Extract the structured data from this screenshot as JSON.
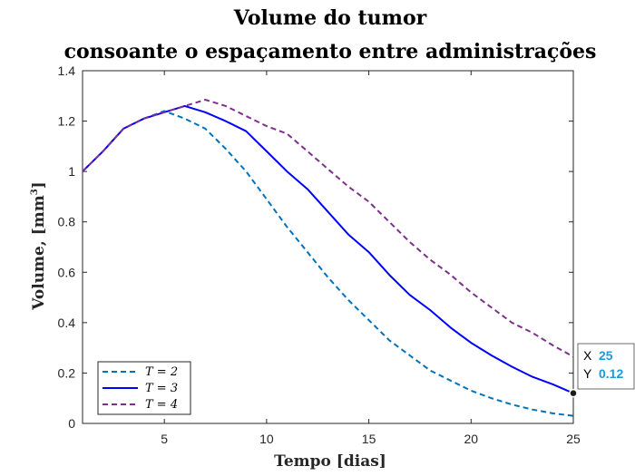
{
  "chart_data": {
    "type": "line",
    "title": [
      "Volume do tumor",
      "consoante o espaçamento entre administrações"
    ],
    "xlabel": "Tempo [dias]",
    "ylabel": "Volume, [mm",
    "ylabel_sup": "3",
    "ylabel_end": "]",
    "xlim": [
      1,
      25
    ],
    "ylim": [
      0,
      1.4
    ],
    "xticks": [
      5,
      10,
      15,
      20,
      25
    ],
    "yticks": [
      0,
      0.2,
      0.4,
      0.6,
      0.8,
      1,
      1.2,
      1.4
    ],
    "ytick_labels": [
      "0",
      "0.2",
      "0.4",
      "0.6",
      "0.8",
      "1",
      "1.2",
      "1.4"
    ],
    "grid": false,
    "legend_position": "bottom-left",
    "series": [
      {
        "name": "T = 2",
        "color": "#0072BD",
        "dash": "dashed",
        "x": [
          1,
          2,
          3,
          4,
          5,
          6,
          7,
          8,
          9,
          10,
          11,
          12,
          13,
          14,
          15,
          16,
          17,
          18,
          19,
          20,
          21,
          22,
          23,
          24,
          25
        ],
        "y": [
          1.0,
          1.08,
          1.17,
          1.21,
          1.24,
          1.21,
          1.17,
          1.09,
          1.0,
          0.89,
          0.78,
          0.68,
          0.58,
          0.49,
          0.41,
          0.33,
          0.27,
          0.21,
          0.17,
          0.13,
          0.1,
          0.075,
          0.055,
          0.04,
          0.03
        ]
      },
      {
        "name": "T = 3",
        "color": "#0000FF",
        "dash": "solid",
        "x": [
          1,
          2,
          3,
          4,
          5,
          6,
          7,
          8,
          9,
          10,
          11,
          12,
          13,
          14,
          15,
          16,
          17,
          18,
          19,
          20,
          21,
          22,
          23,
          24,
          25
        ],
        "y": [
          1.0,
          1.08,
          1.17,
          1.21,
          1.235,
          1.26,
          1.235,
          1.2,
          1.16,
          1.08,
          1.0,
          0.93,
          0.84,
          0.75,
          0.68,
          0.59,
          0.51,
          0.45,
          0.38,
          0.32,
          0.27,
          0.225,
          0.185,
          0.155,
          0.12
        ]
      },
      {
        "name": "T = 4",
        "color": "#7E2F8E",
        "dash": "dashed",
        "x": [
          1,
          2,
          3,
          4,
          5,
          6,
          7,
          8,
          9,
          10,
          11,
          12,
          13,
          14,
          15,
          16,
          17,
          18,
          19,
          20,
          21,
          22,
          23,
          24,
          25
        ],
        "y": [
          1.0,
          1.08,
          1.17,
          1.21,
          1.235,
          1.26,
          1.285,
          1.26,
          1.22,
          1.18,
          1.15,
          1.08,
          1.01,
          0.94,
          0.88,
          0.8,
          0.72,
          0.65,
          0.59,
          0.52,
          0.46,
          0.4,
          0.36,
          0.31,
          0.265
        ]
      }
    ],
    "legend": [
      {
        "label": "T = 2"
      },
      {
        "label": "T = 3"
      },
      {
        "label": "T = 4"
      }
    ],
    "datatip": {
      "x_label": "X",
      "x_value": "25",
      "y_label": "Y",
      "y_value": "0.12",
      "point_x": 25,
      "point_y": 0.12
    }
  }
}
